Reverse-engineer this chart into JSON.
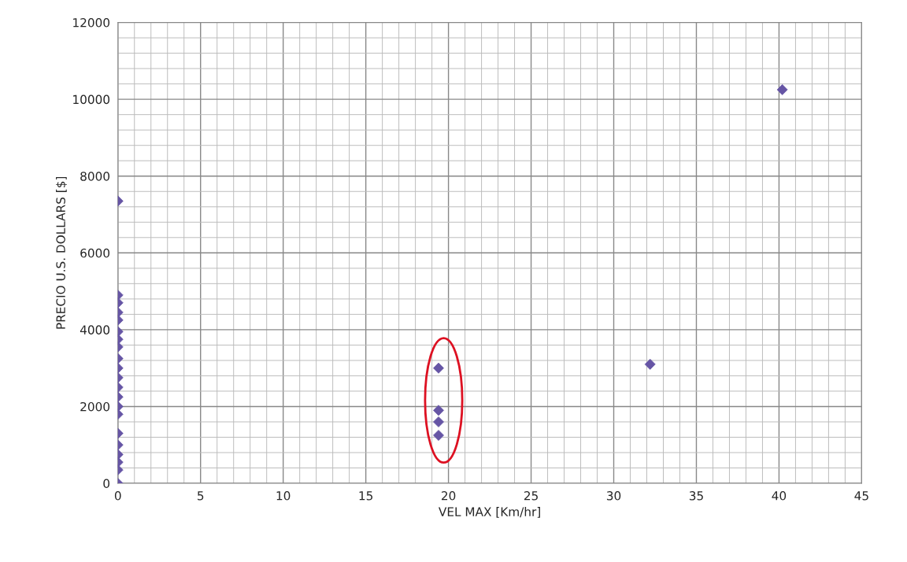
{
  "chart_data": {
    "type": "scatter",
    "xlabel": "VEL MAX [Km/hr]",
    "ylabel": "PRECIO U.S. DOLLARS [$]",
    "series": [
      {
        "color": "#6655a5",
        "x": [
          0,
          0,
          0,
          0,
          0,
          0,
          0,
          0,
          0,
          0,
          0,
          0,
          0,
          0,
          0,
          0,
          0,
          0,
          0,
          0,
          0,
          19.4,
          19.4,
          19.4,
          19.4,
          32.2,
          40.2
        ],
        "values": [
          7350,
          4900,
          4700,
          4450,
          4250,
          3950,
          3750,
          3550,
          3250,
          3000,
          2750,
          2500,
          2250,
          2000,
          1800,
          1300,
          1000,
          750,
          550,
          350,
          0,
          3000,
          1900,
          1600,
          1250,
          3100,
          10250
        ]
      }
    ],
    "xlim": [
      0,
      45
    ],
    "ylim": [
      0,
      12000
    ],
    "xticks": [
      0,
      5,
      10,
      15,
      20,
      25,
      30,
      35,
      40,
      45
    ],
    "yticks": [
      0,
      2000,
      4000,
      6000,
      8000,
      10000,
      12000
    ],
    "grid": true,
    "marker": "diamond"
  }
}
